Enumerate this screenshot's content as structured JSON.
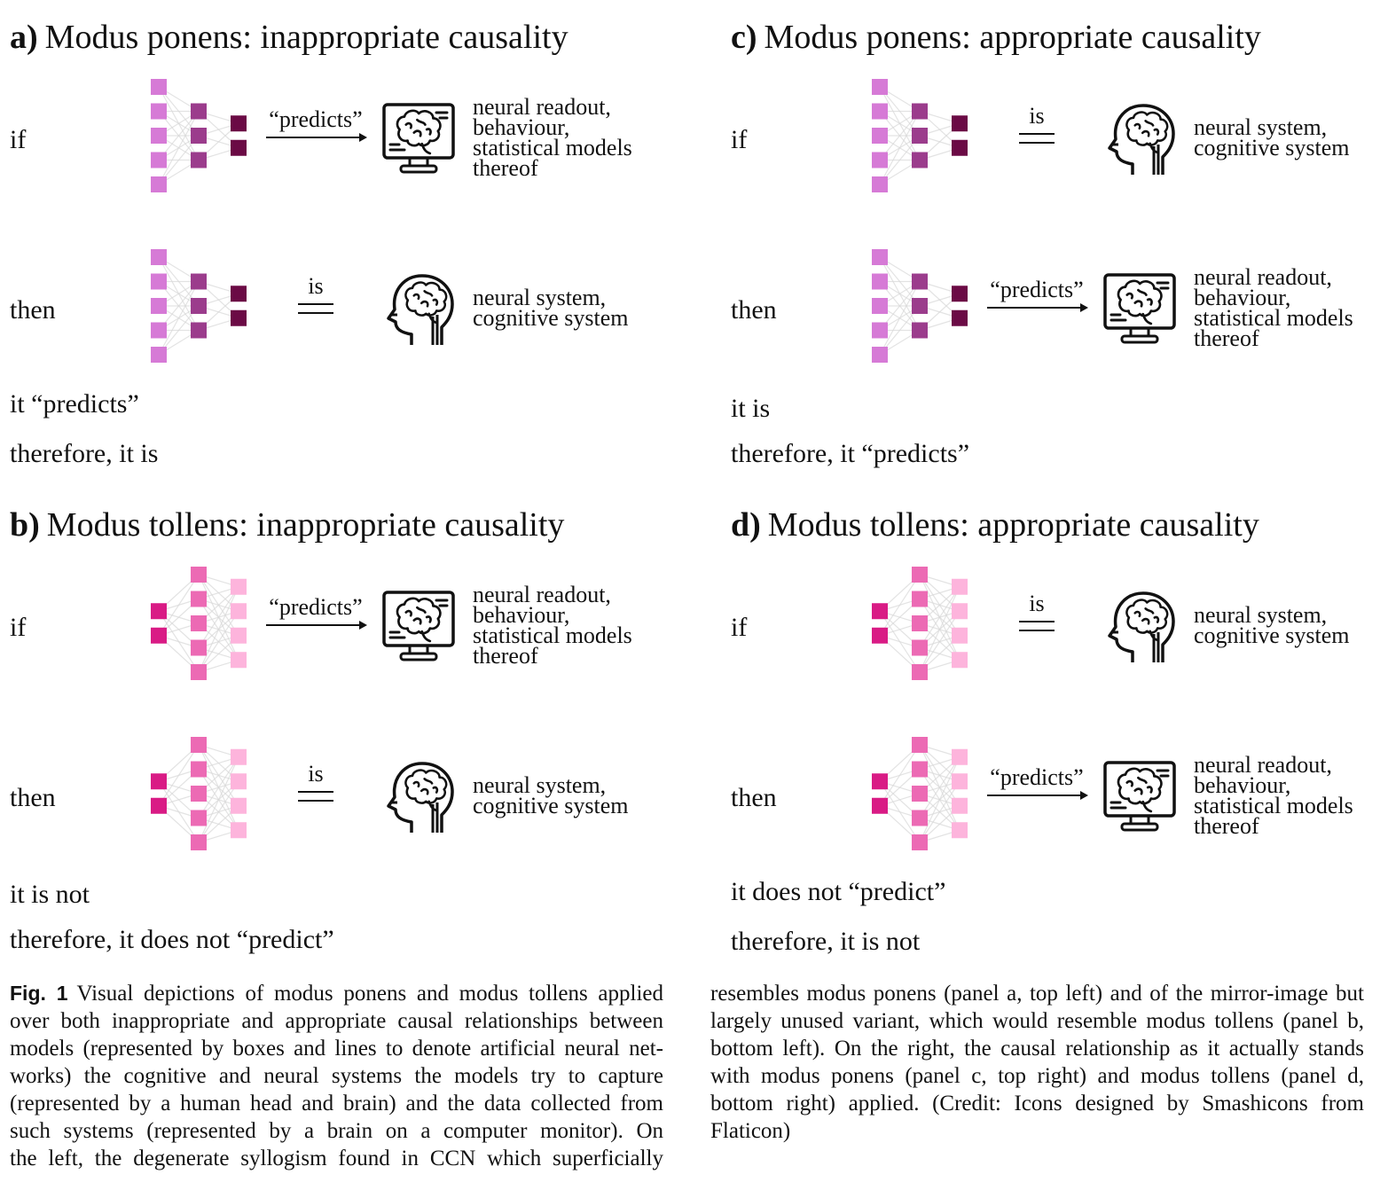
{
  "colors": {
    "net_a": [
      "#d67ad6",
      "#9b3c8c",
      "#6b0a45"
    ],
    "net_b": [
      "#d91b85",
      "#ec6ab4",
      "#fdb4dc"
    ],
    "connection": "#d8d8d8",
    "ink": "#111111"
  },
  "panels": [
    {
      "label": "a)",
      "title": "Modus ponens: inappropriate causality",
      "network": "ponens",
      "rows": [
        {
          "condition": "if",
          "relation": "“predicts”",
          "relation_type": "predicts-arrow",
          "icon": "monitor-brain-icon",
          "target_lines": [
            "neural readout,",
            "behaviour,",
            "statistical models",
            "thereof"
          ]
        },
        {
          "condition": "then",
          "relation": "is",
          "relation_type": "equals",
          "icon": "human-head-brain-icon",
          "target_lines": [
            "neural system,",
            "cognitive system"
          ]
        }
      ],
      "conclusions": [
        "it “predicts”",
        "therefore, it is"
      ]
    },
    {
      "label": "b)",
      "title": "Modus tollens: inappropriate causality",
      "network": "tollens",
      "rows": [
        {
          "condition": "if",
          "relation": "“predicts”",
          "relation_type": "predicts-arrow",
          "icon": "monitor-brain-icon",
          "target_lines": [
            "neural readout,",
            "behaviour,",
            "statistical models",
            "thereof"
          ]
        },
        {
          "condition": "then",
          "relation": "is",
          "relation_type": "equals",
          "icon": "human-head-brain-icon",
          "target_lines": [
            "neural system,",
            "cognitive system"
          ]
        }
      ],
      "conclusions": [
        "it is not",
        "therefore, it does not “predict”"
      ]
    },
    {
      "label": "c)",
      "title": "Modus ponens: appropriate causality",
      "network": "ponens",
      "rows": [
        {
          "condition": "if",
          "relation": "is",
          "relation_type": "equals",
          "icon": "human-head-brain-icon",
          "target_lines": [
            "neural system,",
            "cognitive system"
          ]
        },
        {
          "condition": "then",
          "relation": "“predicts”",
          "relation_type": "predicts-arrow",
          "icon": "monitor-brain-icon",
          "target_lines": [
            "neural readout,",
            "behaviour,",
            "statistical models",
            "thereof"
          ]
        }
      ],
      "conclusions": [
        "it is",
        "therefore, it “predicts”"
      ]
    },
    {
      "label": "d)",
      "title": "Modus tollens: appropriate causality",
      "network": "tollens",
      "rows": [
        {
          "condition": "if",
          "relation": "is",
          "relation_type": "equals",
          "icon": "human-head-brain-icon",
          "target_lines": [
            "neural system,",
            "cognitive system"
          ]
        },
        {
          "condition": "then",
          "relation": "“predicts”",
          "relation_type": "predicts-arrow",
          "icon": "monitor-brain-icon",
          "target_lines": [
            "neural readout,",
            "behaviour,",
            "statistical models",
            "thereof"
          ]
        }
      ],
      "conclusions": [
        "it does not “predict”",
        "therefore, it is not"
      ]
    }
  ],
  "caption": {
    "label": "Fig. 1",
    "left_lines": [
      "Visual depictions of modus ponens and modus tollens applied",
      "over both inappropriate and appropriate causal relationships between",
      "models (represented by boxes and lines to denote artificial neural net-",
      "works) the cognitive and neural systems the models try to capture",
      "(represented by a human head and brain) and the data collected from",
      "such systems (represented by a brain on a computer monitor). On",
      "the left, the degenerate syllogism found in CCN which superficially"
    ],
    "right_lines": [
      "resembles modus ponens (panel a, top left) and of the mirror-image but",
      "largely unused variant, which would resemble modus tollens (panel b,",
      "bottom left). On the right, the causal relationship as it actually stands",
      "with modus ponens (panel c, top right) and modus tollens (panel d,",
      "bottom right) applied. (Credit: Icons designed by Smashicons from",
      "Flaticon)"
    ]
  }
}
